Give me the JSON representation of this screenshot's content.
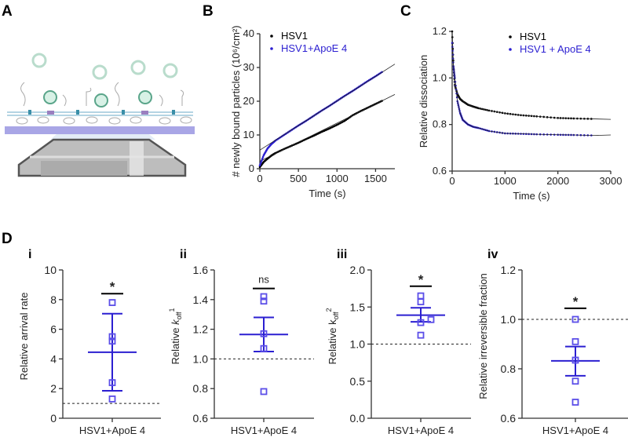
{
  "panel_labels": {
    "A": "A",
    "B": "B",
    "C": "C",
    "D": "D"
  },
  "colors": {
    "hsv1": "#000000",
    "apoe": "#2b1fd1",
    "marker": "#5b4ee8",
    "fit": "#222222"
  },
  "chart_data": [
    {
      "id": "B",
      "type": "line",
      "xlabel": "Time (s)",
      "ylabel": "# newly bound particles (10⁶/cm²)",
      "xlim": [
        0,
        1750
      ],
      "ylim": [
        0,
        40
      ],
      "xticks": [
        0,
        500,
        1000,
        1500
      ],
      "yticks": [
        0,
        10,
        20,
        30,
        40
      ],
      "legend_placement": "top-left",
      "series": [
        {
          "name": "HSV1",
          "color": "#000000",
          "x": [
            0,
            50,
            100,
            150,
            200,
            300,
            400,
            500,
            600,
            700,
            800,
            900,
            1000,
            1100,
            1200,
            1300,
            1400,
            1500,
            1600
          ],
          "y": [
            0.5,
            2,
            3,
            3.9,
            4.6,
            5.7,
            6.7,
            7.7,
            8.8,
            9.8,
            10.9,
            11.9,
            13,
            14.2,
            15.8,
            17,
            18.1,
            19.2,
            20.3
          ],
          "fit_x": [
            0,
            1750
          ],
          "fit_y": [
            2.2,
            22
          ]
        },
        {
          "name": "HSV1+ApoE 4",
          "color": "#2b1fd1",
          "x": [
            0,
            50,
            100,
            150,
            200,
            300,
            400,
            500,
            600,
            700,
            800,
            900,
            1000,
            1100,
            1200,
            1300,
            1400,
            1500,
            1600
          ],
          "y": [
            1,
            4,
            6,
            7.3,
            8.3,
            9.8,
            11.3,
            12.8,
            14.2,
            15.7,
            17.2,
            18.6,
            20.1,
            21.6,
            23,
            24.5,
            26,
            27.4,
            28.9
          ],
          "fit_x": [
            0,
            1750
          ],
          "fit_y": [
            5.5,
            31
          ]
        }
      ]
    },
    {
      "id": "C",
      "type": "line",
      "xlabel": "Time (s)",
      "ylabel": "Relative dissociation",
      "xlim": [
        0,
        3000
      ],
      "ylim": [
        0.6,
        1.2
      ],
      "xticks": [
        0,
        1000,
        2000,
        3000
      ],
      "yticks": [
        0.6,
        0.8,
        1.0,
        1.2
      ],
      "legend_placement": "top-right",
      "series": [
        {
          "name": "HSV1",
          "color": "#000000",
          "x": [
            0,
            25,
            50,
            100,
            150,
            200,
            300,
            400,
            500,
            700,
            1000,
            1300,
            1600,
            2000,
            2300,
            2700
          ],
          "y": [
            1.2,
            1.05,
            0.97,
            0.93,
            0.91,
            0.9,
            0.885,
            0.877,
            0.87,
            0.86,
            0.848,
            0.84,
            0.835,
            0.828,
            0.826,
            0.824
          ],
          "fit_x": [
            0,
            25,
            50,
            100,
            150,
            200,
            300,
            400,
            500,
            700,
            1000,
            1300,
            1600,
            2000,
            2300,
            2700,
            3000
          ],
          "fit_y": [
            1.2,
            1.05,
            0.97,
            0.93,
            0.91,
            0.9,
            0.885,
            0.877,
            0.87,
            0.86,
            0.848,
            0.84,
            0.835,
            0.828,
            0.826,
            0.824,
            0.822
          ]
        },
        {
          "name": "HSV1 + ApoE 4",
          "color": "#2b1fd1",
          "x": [
            0,
            25,
            50,
            100,
            150,
            200,
            300,
            400,
            500,
            700,
            1000,
            1300,
            1600,
            2000,
            2300,
            2700
          ],
          "y": [
            1.15,
            1.05,
            1.0,
            0.9,
            0.85,
            0.82,
            0.8,
            0.79,
            0.785,
            0.772,
            0.762,
            0.76,
            0.758,
            0.756,
            0.755,
            0.753
          ],
          "fit_x": [
            0,
            25,
            50,
            100,
            150,
            200,
            300,
            400,
            500,
            700,
            1000,
            1300,
            1600,
            2000,
            2300,
            2700,
            3000
          ],
          "fit_y": [
            1.15,
            1.05,
            1.0,
            0.9,
            0.85,
            0.82,
            0.8,
            0.79,
            0.785,
            0.772,
            0.762,
            0.76,
            0.758,
            0.756,
            0.755,
            0.753,
            0.755
          ]
        }
      ]
    },
    {
      "id": "Di",
      "type": "scatter",
      "sublabel": "i",
      "category": "HSV1+ApoE 4",
      "ylabel": "Relative arrival rate",
      "ylim": [
        0,
        10
      ],
      "yticks": [
        "0",
        "2",
        "4",
        "6",
        "8",
        "10"
      ],
      "ytick_values": [
        0,
        2,
        4,
        6,
        8,
        10
      ],
      "points": [
        7.8,
        5.5,
        5.2,
        2.4,
        1.3
      ],
      "mean": 4.45,
      "error": [
        1.85,
        7.05
      ],
      "reference_line": 1,
      "significance": "*",
      "significance_bar": 8.4
    },
    {
      "id": "Dii",
      "type": "scatter",
      "sublabel": "ii",
      "category": "HSV1+ApoE 4",
      "ylabel": "Relative k_off^1",
      "ylim": [
        0.6,
        1.6
      ],
      "yticks": [
        "0.6",
        "0.8",
        "1.0",
        "1.2",
        "1.4",
        "1.6"
      ],
      "ytick_values": [
        0.6,
        0.8,
        1.0,
        1.2,
        1.4,
        1.6
      ],
      "points": [
        1.42,
        1.39,
        1.17,
        1.07,
        0.78
      ],
      "mean": 1.165,
      "error": [
        1.05,
        1.28
      ],
      "reference_line": 1.0,
      "significance": "ns",
      "significance_bar": 1.475
    },
    {
      "id": "Diii",
      "type": "scatter",
      "sublabel": "iii",
      "category": "HSV1+ApoE 4",
      "ylabel": "Relative k_off^2",
      "ylim": [
        0,
        2
      ],
      "yticks": [
        "0.0",
        "0.5",
        "1.0",
        "1.5",
        "2.0"
      ],
      "ytick_values": [
        0,
        0.5,
        1,
        1.5,
        2
      ],
      "points": [
        1.65,
        1.57,
        1.33,
        1.29,
        1.12
      ],
      "mean": 1.39,
      "error": [
        1.3,
        1.49
      ],
      "reference_line": 1.0,
      "significance": "*",
      "significance_bar": 1.78
    },
    {
      "id": "Div",
      "type": "scatter",
      "sublabel": "iv",
      "category": "HSV1+ApoE 4",
      "ylabel": "Relative irreversible fraction",
      "ylim": [
        0.6,
        1.2
      ],
      "yticks": [
        "0.6",
        "0.8",
        "1.0",
        "1.2"
      ],
      "ytick_values": [
        0.6,
        0.8,
        1.0,
        1.2
      ],
      "points": [
        1.0,
        0.91,
        0.835,
        0.75,
        0.665
      ],
      "mean": 0.832,
      "error": [
        0.772,
        0.89
      ],
      "reference_line": 1.0,
      "significance": "*",
      "significance_bar": 1.045
    }
  ]
}
